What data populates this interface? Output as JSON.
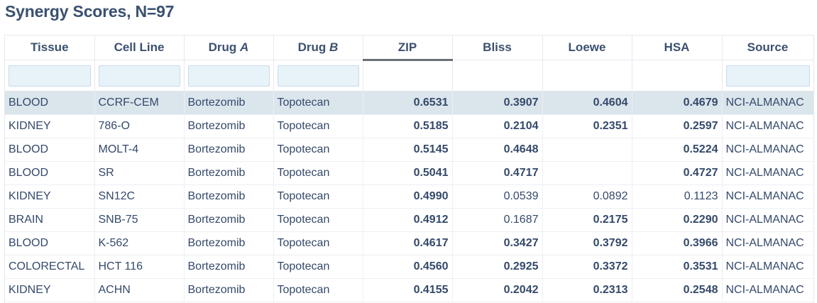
{
  "title": "Synergy Scores, N=97",
  "columns": [
    {
      "label": "Tissue",
      "italic_suffix": ""
    },
    {
      "label": "Cell Line",
      "italic_suffix": ""
    },
    {
      "label": "Drug ",
      "italic_suffix": "A"
    },
    {
      "label": "Drug ",
      "italic_suffix": "B"
    },
    {
      "label": "ZIP",
      "italic_suffix": "",
      "sorted": true
    },
    {
      "label": "Bliss",
      "italic_suffix": ""
    },
    {
      "label": "Loewe",
      "italic_suffix": ""
    },
    {
      "label": "HSA",
      "italic_suffix": ""
    },
    {
      "label": "Source",
      "italic_suffix": ""
    }
  ],
  "filters": {
    "tissue": "",
    "cell_line": "",
    "drug_a": "",
    "drug_b": "",
    "source": ""
  },
  "rows": [
    {
      "tissue": "BLOOD",
      "cell_line": "CCRF-CEM",
      "drug_a": "Bortezomib",
      "drug_b": "Topotecan",
      "zip": "0.6531",
      "bliss": "0.3907",
      "loewe": "0.4604",
      "hsa": "0.4679",
      "source": "NCI-ALMANAC",
      "selected": true
    },
    {
      "tissue": "KIDNEY",
      "cell_line": "786-O",
      "drug_a": "Bortezomib",
      "drug_b": "Topotecan",
      "zip": "0.5185",
      "bliss": "0.2104",
      "loewe": "0.2351",
      "hsa": "0.2597",
      "source": "NCI-ALMANAC"
    },
    {
      "tissue": "BLOOD",
      "cell_line": "MOLT-4",
      "drug_a": "Bortezomib",
      "drug_b": "Topotecan",
      "zip": "0.5145",
      "bliss": "0.4648",
      "loewe": "",
      "hsa": "0.5224",
      "source": "NCI-ALMANAC"
    },
    {
      "tissue": "BLOOD",
      "cell_line": "SR",
      "drug_a": "Bortezomib",
      "drug_b": "Topotecan",
      "zip": "0.5041",
      "bliss": "0.4717",
      "loewe": "",
      "hsa": "0.4727",
      "source": "NCI-ALMANAC"
    },
    {
      "tissue": "KIDNEY",
      "cell_line": "SN12C",
      "drug_a": "Bortezomib",
      "drug_b": "Topotecan",
      "zip": "0.4990",
      "bliss": "0.0539",
      "loewe": "0.0892",
      "hsa": "0.1123",
      "source": "NCI-ALMANAC"
    },
    {
      "tissue": "BRAIN",
      "cell_line": "SNB-75",
      "drug_a": "Bortezomib",
      "drug_b": "Topotecan",
      "zip": "0.4912",
      "bliss": "0.1687",
      "loewe": "0.2175",
      "hsa": "0.2290",
      "source": "NCI-ALMANAC"
    },
    {
      "tissue": "BLOOD",
      "cell_line": "K-562",
      "drug_a": "Bortezomib",
      "drug_b": "Topotecan",
      "zip": "0.4617",
      "bliss": "0.3427",
      "loewe": "0.3792",
      "hsa": "0.3966",
      "source": "NCI-ALMANAC"
    },
    {
      "tissue": "COLORECTAL",
      "cell_line": "HCT 116",
      "drug_a": "Bortezomib",
      "drug_b": "Topotecan",
      "zip": "0.4560",
      "bliss": "0.2925",
      "loewe": "0.3372",
      "hsa": "0.3531",
      "source": "NCI-ALMANAC"
    },
    {
      "tissue": "KIDNEY",
      "cell_line": "ACHN",
      "drug_a": "Bortezomib",
      "drug_b": "Topotecan",
      "zip": "0.4155",
      "bliss": "0.2042",
      "loewe": "0.2313",
      "hsa": "0.2548",
      "source": "NCI-ALMANAC"
    }
  ],
  "bold_values": {
    "zip": [
      true,
      true,
      true,
      true,
      true,
      true,
      true,
      true,
      true
    ],
    "bliss": [
      true,
      true,
      true,
      true,
      false,
      false,
      true,
      true,
      true
    ],
    "loewe": [
      true,
      true,
      false,
      false,
      false,
      true,
      true,
      true,
      true
    ],
    "hsa": [
      true,
      true,
      true,
      true,
      false,
      true,
      true,
      true,
      true
    ]
  }
}
